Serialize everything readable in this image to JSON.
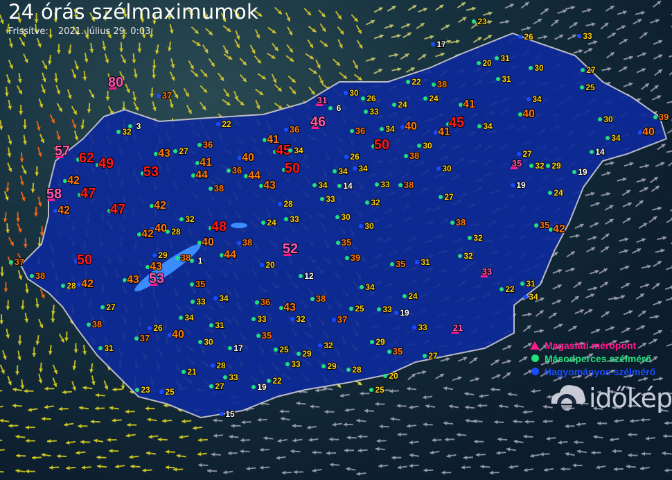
{
  "header": {
    "title": "24 órás szélmaximumok",
    "updated_label": "Frissítve:",
    "updated_value": "2021. július 29. 0:03"
  },
  "legend": [
    {
      "label": "Magaslati mérőpont",
      "symbol": "triangle",
      "color": "#ff1a8c"
    },
    {
      "label": "Másodperces szélmérő",
      "symbol": "dot",
      "color": "#22e07a"
    },
    {
      "label": "Hagyományos szélmérő",
      "symbol": "dot",
      "color": "#1a4dff"
    }
  ],
  "logo": {
    "text": "időkép"
  },
  "colors": {
    "country_fill": "#0d2a9a",
    "border": "#c8c8d0",
    "lake": "#3a8cff",
    "strong": "#ff1a1a",
    "high": "#ff7a10",
    "mid": "#ffd21a",
    "low": "#ffffff",
    "elevated": "#ff5ab4"
  },
  "stations": [
    {
      "v": "80",
      "t": "magaslati"
    },
    {
      "v": "57",
      "t": "magaslati"
    },
    {
      "v": "62",
      "t": "x"
    },
    {
      "v": "49",
      "t": "x"
    },
    {
      "v": "58",
      "t": "magaslati"
    },
    {
      "v": "53",
      "t": "x"
    },
    {
      "v": "47",
      "t": "x"
    },
    {
      "v": "47",
      "t": "x"
    },
    {
      "v": "50",
      "t": "x"
    },
    {
      "v": "48",
      "t": "x"
    },
    {
      "v": "52",
      "t": "magaslati"
    },
    {
      "v": "53",
      "t": "magaslati"
    },
    {
      "v": "46",
      "t": "magaslati"
    },
    {
      "v": "50",
      "t": "x"
    },
    {
      "v": "50",
      "t": "x"
    },
    {
      "v": "45",
      "t": "x"
    },
    {
      "v": "41",
      "t": "x"
    },
    {
      "v": "41",
      "t": "x"
    },
    {
      "v": "45",
      "t": "x"
    },
    {
      "v": "44",
      "t": "x"
    },
    {
      "v": "37",
      "t": "x"
    },
    {
      "v": "43",
      "t": "x"
    },
    {
      "v": "41",
      "t": "x"
    },
    {
      "v": "36",
      "t": "x"
    },
    {
      "v": "40",
      "t": "x"
    },
    {
      "v": "44",
      "t": "x"
    },
    {
      "v": "43",
      "t": "x"
    },
    {
      "v": "41",
      "t": "x"
    },
    {
      "v": "36",
      "t": "x"
    },
    {
      "v": "34",
      "t": "x"
    },
    {
      "v": "38",
      "t": "x"
    },
    {
      "v": "42",
      "t": "x"
    },
    {
      "v": "40",
      "t": "x"
    },
    {
      "v": "42",
      "t": "x"
    },
    {
      "v": "40",
      "t": "x"
    },
    {
      "v": "44",
      "t": "x"
    },
    {
      "v": "38",
      "t": "x"
    },
    {
      "v": "38",
      "t": "x"
    },
    {
      "v": "43",
      "t": "x"
    },
    {
      "v": "43",
      "t": "x"
    },
    {
      "v": "42",
      "t": "x"
    },
    {
      "v": "38",
      "t": "x"
    },
    {
      "v": "37",
      "t": "x"
    },
    {
      "v": "42",
      "t": "x"
    },
    {
      "v": "42",
      "t": "x"
    },
    {
      "v": "36",
      "t": "x"
    },
    {
      "v": "38",
      "t": "x"
    },
    {
      "v": "37",
      "t": "x"
    },
    {
      "v": "40",
      "t": "x"
    },
    {
      "v": "36",
      "t": "x"
    },
    {
      "v": "43",
      "t": "x"
    },
    {
      "v": "38",
      "t": "x"
    },
    {
      "v": "37",
      "t": "x"
    },
    {
      "v": "39",
      "t": "x"
    },
    {
      "v": "36",
      "t": "x"
    },
    {
      "v": "34",
      "t": "x"
    },
    {
      "v": "40",
      "t": "x"
    },
    {
      "v": "38",
      "t": "x"
    },
    {
      "v": "38",
      "t": "x"
    },
    {
      "v": "34",
      "t": "x"
    },
    {
      "v": "34",
      "t": "x"
    },
    {
      "v": "38",
      "t": "x"
    },
    {
      "v": "40",
      "t": "x"
    },
    {
      "v": "39",
      "t": "x"
    },
    {
      "v": "40",
      "t": "x"
    },
    {
      "v": "42",
      "t": "x"
    },
    {
      "v": "34",
      "t": "x"
    },
    {
      "v": "38",
      "t": "x"
    },
    {
      "v": "33",
      "t": "x"
    },
    {
      "v": "32",
      "t": "x"
    },
    {
      "v": "27",
      "t": "x"
    },
    {
      "v": "28",
      "t": "x"
    },
    {
      "v": "29",
      "t": "x"
    },
    {
      "v": "32",
      "t": "x"
    },
    {
      "v": "35",
      "t": "x"
    },
    {
      "v": "33",
      "t": "x"
    },
    {
      "v": "34",
      "t": "x"
    },
    {
      "v": "34",
      "t": "x"
    },
    {
      "v": "31",
      "t": "x"
    },
    {
      "v": "30",
      "t": "x"
    },
    {
      "v": "28",
      "t": "x"
    },
    {
      "v": "33",
      "t": "x"
    },
    {
      "v": "27",
      "t": "x"
    },
    {
      "v": "21",
      "t": "x"
    },
    {
      "v": "25",
      "t": "x"
    },
    {
      "v": "23",
      "t": "x"
    },
    {
      "v": "31",
      "t": "x"
    },
    {
      "v": "27",
      "t": "x"
    },
    {
      "v": "26",
      "t": "x"
    },
    {
      "v": "28",
      "t": "x"
    },
    {
      "v": "33",
      "t": "x"
    },
    {
      "v": "35",
      "t": "x"
    },
    {
      "v": "32",
      "t": "x"
    },
    {
      "v": "25",
      "t": "x"
    },
    {
      "v": "33",
      "t": "x"
    },
    {
      "v": "29",
      "t": "x"
    },
    {
      "v": "32",
      "t": "x"
    },
    {
      "v": "29",
      "t": "x"
    },
    {
      "v": "25",
      "t": "x"
    },
    {
      "v": "33",
      "t": "x"
    },
    {
      "v": "19",
      "t": "x"
    },
    {
      "v": "29",
      "t": "x"
    },
    {
      "v": "35",
      "t": "x"
    },
    {
      "v": "27",
      "t": "x"
    },
    {
      "v": "33",
      "t": "x"
    },
    {
      "v": "24",
      "t": "x"
    },
    {
      "v": "34",
      "t": "x"
    },
    {
      "v": "35",
      "t": "x"
    },
    {
      "v": "31",
      "t": "x"
    },
    {
      "v": "32",
      "t": "x"
    },
    {
      "v": "32",
      "t": "x"
    },
    {
      "v": "27",
      "t": "x"
    },
    {
      "v": "30",
      "t": "x"
    },
    {
      "v": "33",
      "t": "x"
    },
    {
      "v": "32",
      "t": "x"
    },
    {
      "v": "30",
      "t": "x"
    },
    {
      "v": "30",
      "t": "x"
    },
    {
      "v": "35",
      "t": "x"
    },
    {
      "v": "33",
      "t": "x"
    },
    {
      "v": "24",
      "t": "x"
    },
    {
      "v": "28",
      "t": "x"
    },
    {
      "v": "33",
      "t": "x"
    },
    {
      "v": "34",
      "t": "x"
    },
    {
      "v": "14",
      "t": "x"
    },
    {
      "v": "26",
      "t": "x"
    },
    {
      "v": "30",
      "t": "x"
    },
    {
      "v": "33",
      "t": "x"
    },
    {
      "v": "26",
      "t": "x"
    },
    {
      "v": "30",
      "t": "x"
    },
    {
      "v": "24",
      "t": "x"
    },
    {
      "v": "22",
      "t": "x"
    },
    {
      "v": "24",
      "t": "x"
    },
    {
      "v": "17",
      "t": "x"
    },
    {
      "v": "20",
      "t": "x"
    },
    {
      "v": "31",
      "t": "x"
    },
    {
      "v": "31",
      "t": "x"
    },
    {
      "v": "26",
      "t": "x"
    },
    {
      "v": "30",
      "t": "x"
    },
    {
      "v": "27",
      "t": "x"
    },
    {
      "v": "25",
      "t": "x"
    },
    {
      "v": "34",
      "t": "x"
    },
    {
      "v": "30",
      "t": "x"
    },
    {
      "v": "34",
      "t": "x"
    },
    {
      "v": "14",
      "t": "x"
    },
    {
      "v": "27",
      "t": "x"
    },
    {
      "v": "32",
      "t": "x"
    },
    {
      "v": "29",
      "t": "x"
    },
    {
      "v": "19",
      "t": "x"
    },
    {
      "v": "19",
      "t": "x"
    },
    {
      "v": "24",
      "t": "x"
    },
    {
      "v": "35",
      "t": "x"
    },
    {
      "v": "31",
      "t": "x"
    },
    {
      "v": "34",
      "t": "x"
    },
    {
      "v": "22",
      "t": "x"
    },
    {
      "v": "33",
      "t": "magaslati"
    },
    {
      "v": "35",
      "t": "magaslati"
    },
    {
      "v": "21",
      "t": "magaslati"
    },
    {
      "v": "31",
      "t": "magaslati"
    },
    {
      "v": "6",
      "t": "x"
    },
    {
      "v": "12",
      "t": "x"
    },
    {
      "v": "20",
      "t": "x"
    },
    {
      "v": "17",
      "t": "x"
    },
    {
      "v": "19",
      "t": "x"
    },
    {
      "v": "22",
      "t": "x"
    },
    {
      "v": "15",
      "t": "x"
    },
    {
      "v": "28",
      "t": "x"
    },
    {
      "v": "25",
      "t": "x"
    },
    {
      "v": "20",
      "t": "x"
    },
    {
      "v": "22",
      "t": "x"
    },
    {
      "v": "23",
      "t": "x"
    },
    {
      "v": "3",
      "t": "x"
    },
    {
      "v": "1",
      "t": "x"
    }
  ]
}
